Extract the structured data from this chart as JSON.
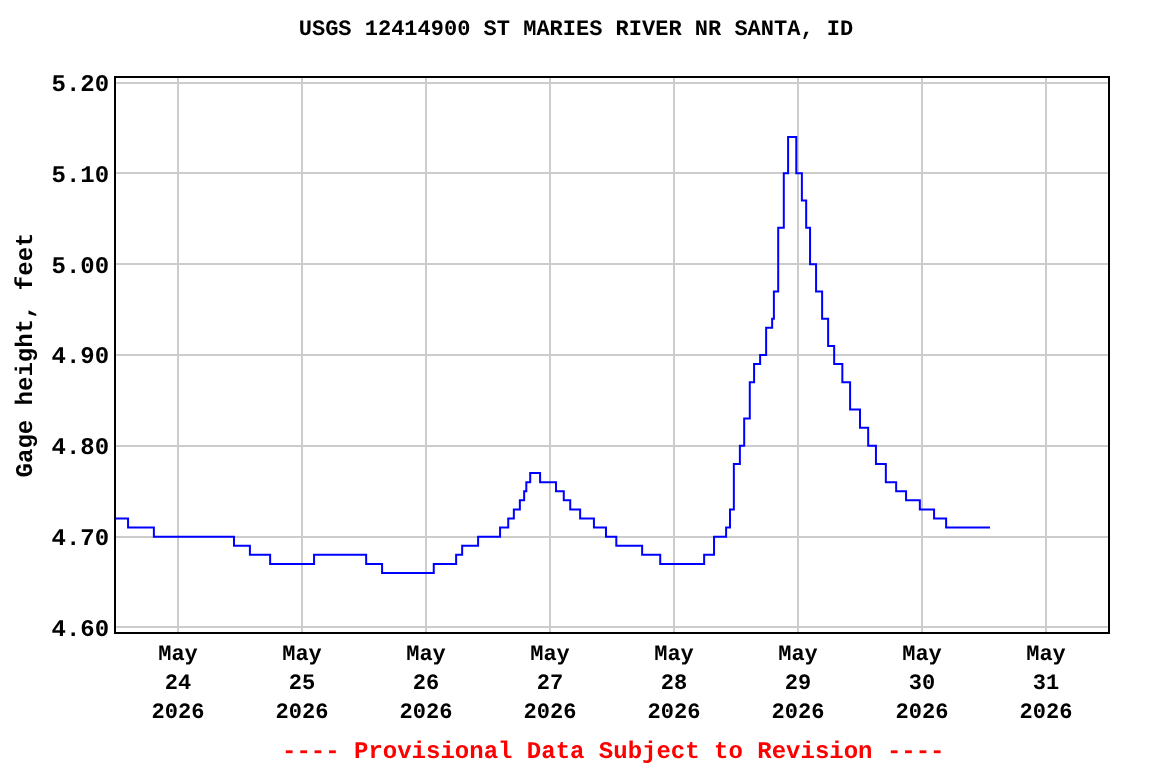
{
  "chart_data": {
    "type": "step",
    "title": "USGS 12414900 ST MARIES RIVER NR SANTA, ID",
    "ylabel": "Gage height, feet",
    "annotations": [
      "---- Provisional Data Subject to Revision ----"
    ],
    "x": [
      "2026-05-23T12:00",
      "2026-05-23T14:20",
      "2026-05-23T19:20",
      "2026-05-24T10:50",
      "2026-05-24T13:55",
      "2026-05-24T17:50",
      "2026-05-25T02:20",
      "2026-05-25T12:25",
      "2026-05-25T15:30",
      "2026-05-26T01:30",
      "2026-05-26T05:50",
      "2026-05-26T07:00",
      "2026-05-26T10:05",
      "2026-05-26T14:20",
      "2026-05-26T15:55",
      "2026-05-26T17:00",
      "2026-05-26T18:10",
      "2026-05-26T19:00",
      "2026-05-26T19:25",
      "2026-05-26T20:10",
      "2026-05-26T21:40",
      "2026-05-26T22:05",
      "2026-05-27T01:10",
      "2026-05-27T02:40",
      "2026-05-27T03:55",
      "2026-05-27T05:50",
      "2026-05-27T08:30",
      "2026-05-27T10:50",
      "2026-05-27T12:50",
      "2026-05-27T17:50",
      "2026-05-27T21:20",
      "2026-05-28T04:40",
      "2026-05-28T05:50",
      "2026-05-28T07:45",
      "2026-05-28T10:05",
      "2026-05-28T10:50",
      "2026-05-28T11:35",
      "2026-05-28T12:45",
      "2026-05-28T13:35",
      "2026-05-28T14:40",
      "2026-05-28T15:30",
      "2026-05-28T16:40",
      "2026-05-28T17:50",
      "2026-05-28T19:00",
      "2026-05-28T19:20",
      "2026-05-28T20:10",
      "2026-05-28T21:15",
      "2026-05-28T22:05",
      "2026-05-28T22:50",
      "2026-05-28T23:40",
      "2026-05-29T00:45",
      "2026-05-29T01:35",
      "2026-05-29T02:20",
      "2026-05-29T03:30",
      "2026-05-29T04:40",
      "2026-05-29T05:50",
      "2026-05-29T07:00",
      "2026-05-29T08:35",
      "2026-05-29T10:05",
      "2026-05-29T12:00",
      "2026-05-29T13:35",
      "2026-05-29T15:05",
      "2026-05-29T17:00",
      "2026-05-29T19:00",
      "2026-05-29T20:55",
      "2026-05-29T23:35",
      "2026-05-30T02:20",
      "2026-05-30T04:40",
      "2026-05-30T13:10"
    ],
    "series": [
      {
        "color": "#0000ff",
        "values": [
          4.72,
          4.71,
          4.7,
          4.69,
          4.68,
          4.67,
          4.68,
          4.67,
          4.66,
          4.67,
          4.68,
          4.69,
          4.7,
          4.71,
          4.72,
          4.73,
          4.74,
          4.75,
          4.76,
          4.77,
          4.77,
          4.76,
          4.75,
          4.74,
          4.73,
          4.72,
          4.71,
          4.7,
          4.69,
          4.68,
          4.67,
          4.67,
          4.68,
          4.7,
          4.71,
          4.73,
          4.78,
          4.8,
          4.83,
          4.87,
          4.89,
          4.9,
          4.93,
          4.94,
          4.97,
          5.04,
          5.1,
          5.14,
          5.14,
          5.1,
          5.07,
          5.04,
          5.0,
          4.97,
          4.94,
          4.91,
          4.89,
          4.87,
          4.84,
          4.82,
          4.8,
          4.78,
          4.76,
          4.75,
          4.74,
          4.73,
          4.72,
          4.71,
          4.71
        ]
      }
    ],
    "xlim": [
      "2026-05-23T12:00",
      "2026-05-31T12:00"
    ],
    "xticks": [
      {
        "value": "2026-05-24",
        "label": "May\n24\n2026"
      },
      {
        "value": "2026-05-25",
        "label": "May\n25\n2026"
      },
      {
        "value": "2026-05-26",
        "label": "May\n26\n2026"
      },
      {
        "value": "2026-05-27",
        "label": "May\n27\n2026"
      },
      {
        "value": "2026-05-28",
        "label": "May\n28\n2026"
      },
      {
        "value": "2026-05-29",
        "label": "May\n29\n2026"
      },
      {
        "value": "2026-05-30",
        "label": "May\n30\n2026"
      },
      {
        "value": "2026-05-31",
        "label": "May\n31\n2026"
      }
    ],
    "ylim": [
      4.595,
      5.205
    ],
    "yticks": [
      {
        "value": 4.6,
        "label": "4.60"
      },
      {
        "value": 4.7,
        "label": "4.70"
      },
      {
        "value": 4.8,
        "label": "4.80"
      },
      {
        "value": 4.9,
        "label": "4.90"
      },
      {
        "value": 5.0,
        "label": "5.00"
      },
      {
        "value": 5.1,
        "label": "5.10"
      },
      {
        "value": 5.2,
        "label": "5.20"
      }
    ],
    "grid": true,
    "marker": "none",
    "line_style": "solid"
  }
}
